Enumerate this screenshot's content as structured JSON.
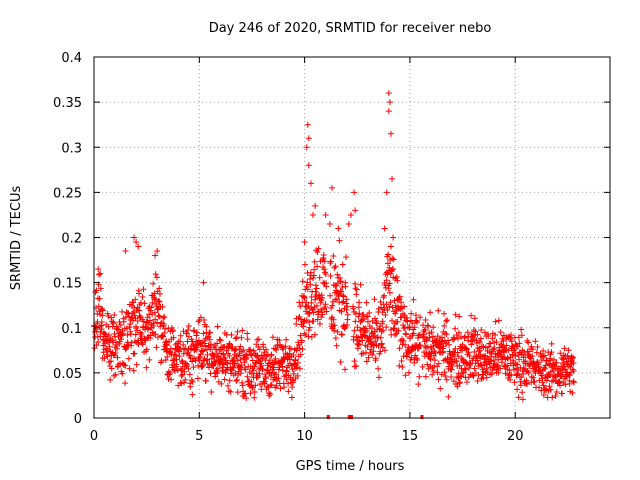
{
  "chart_data": {
    "type": "scatter",
    "title": "Day 246 of 2020, SRMTID for receiver nebo",
    "xlabel": "GPS time / hours",
    "ylabel": "SRMTID / TECUs",
    "xlim": [
      0,
      24.5
    ],
    "ylim": [
      0,
      0.4
    ],
    "xticks": [
      0,
      5,
      10,
      15,
      20
    ],
    "yticks": [
      0,
      0.05,
      0.1,
      0.15,
      0.2,
      0.25,
      0.3,
      0.35,
      0.4
    ],
    "xtick_labels": [
      "0",
      "5",
      "10",
      "15",
      "20"
    ],
    "ytick_labels": [
      "0",
      "0.05",
      "0.1",
      "0.15",
      "0.2",
      "0.25",
      "0.3",
      "0.35",
      "0.4"
    ],
    "grid": true,
    "marker": "+",
    "color": "#ff0000",
    "series": [
      {
        "name": "SRMTID",
        "profile": [
          [
            0.0,
            0.08,
            0.05
          ],
          [
            0.25,
            0.12,
            0.05
          ],
          [
            0.5,
            0.085,
            0.04
          ],
          [
            1.0,
            0.075,
            0.04
          ],
          [
            1.5,
            0.08,
            0.045
          ],
          [
            2.0,
            0.11,
            0.05
          ],
          [
            2.5,
            0.1,
            0.05
          ],
          [
            3.0,
            0.13,
            0.05
          ],
          [
            3.5,
            0.07,
            0.04
          ],
          [
            4.0,
            0.06,
            0.035
          ],
          [
            4.5,
            0.07,
            0.04
          ],
          [
            5.0,
            0.08,
            0.04
          ],
          [
            5.5,
            0.075,
            0.04
          ],
          [
            6.0,
            0.065,
            0.035
          ],
          [
            6.5,
            0.065,
            0.035
          ],
          [
            7.0,
            0.06,
            0.035
          ],
          [
            7.5,
            0.055,
            0.035
          ],
          [
            8.0,
            0.055,
            0.035
          ],
          [
            8.5,
            0.055,
            0.035
          ],
          [
            9.0,
            0.06,
            0.035
          ],
          [
            9.5,
            0.065,
            0.035
          ],
          [
            10.0,
            0.12,
            0.05
          ],
          [
            10.5,
            0.15,
            0.06
          ],
          [
            11.0,
            0.14,
            0.06
          ],
          [
            11.5,
            0.13,
            0.07
          ],
          [
            12.0,
            0.13,
            0.06
          ],
          [
            12.5,
            0.1,
            0.05
          ],
          [
            13.0,
            0.09,
            0.04
          ],
          [
            13.5,
            0.08,
            0.04
          ],
          [
            14.0,
            0.15,
            0.06
          ],
          [
            14.5,
            0.1,
            0.05
          ],
          [
            15.0,
            0.09,
            0.04
          ],
          [
            15.5,
            0.08,
            0.04
          ],
          [
            16.0,
            0.075,
            0.04
          ],
          [
            16.5,
            0.075,
            0.04
          ],
          [
            17.0,
            0.07,
            0.04
          ],
          [
            17.5,
            0.07,
            0.04
          ],
          [
            18.0,
            0.075,
            0.04
          ],
          [
            18.5,
            0.065,
            0.035
          ],
          [
            19.0,
            0.07,
            0.035
          ],
          [
            19.5,
            0.07,
            0.035
          ],
          [
            20.0,
            0.065,
            0.035
          ],
          [
            20.5,
            0.06,
            0.035
          ],
          [
            21.0,
            0.055,
            0.03
          ],
          [
            21.5,
            0.05,
            0.03
          ],
          [
            22.0,
            0.05,
            0.03
          ],
          [
            22.5,
            0.055,
            0.03
          ],
          [
            22.8,
            0.05,
            0.03
          ]
        ],
        "peaks": [
          [
            10.15,
            0.325
          ],
          [
            10.2,
            0.31
          ],
          [
            10.1,
            0.3
          ],
          [
            10.2,
            0.28
          ],
          [
            10.3,
            0.26
          ],
          [
            10.5,
            0.235
          ],
          [
            10.4,
            0.225
          ],
          [
            11.0,
            0.225
          ],
          [
            11.2,
            0.215
          ],
          [
            11.3,
            0.255
          ],
          [
            11.6,
            0.21
          ],
          [
            12.1,
            0.215
          ],
          [
            12.2,
            0.225
          ],
          [
            12.35,
            0.25
          ],
          [
            12.4,
            0.23
          ],
          [
            14.0,
            0.36
          ],
          [
            14.05,
            0.35
          ],
          [
            14.0,
            0.34
          ],
          [
            14.1,
            0.315
          ],
          [
            14.15,
            0.265
          ],
          [
            13.9,
            0.25
          ],
          [
            14.2,
            0.2
          ],
          [
            14.1,
            0.19
          ],
          [
            13.8,
            0.21
          ],
          [
            1.9,
            0.2
          ],
          [
            2.0,
            0.195
          ],
          [
            2.1,
            0.19
          ],
          [
            3.0,
            0.185
          ],
          [
            2.9,
            0.18
          ],
          [
            1.5,
            0.185
          ],
          [
            0.2,
            0.165
          ],
          [
            0.3,
            0.16
          ],
          [
            5.2,
            0.15
          ],
          [
            10.0,
            0.195
          ]
        ],
        "gaps": [
          [
            11.05,
            11.2
          ],
          [
            12.05,
            12.3
          ],
          [
            15.5,
            15.6
          ]
        ]
      }
    ]
  }
}
